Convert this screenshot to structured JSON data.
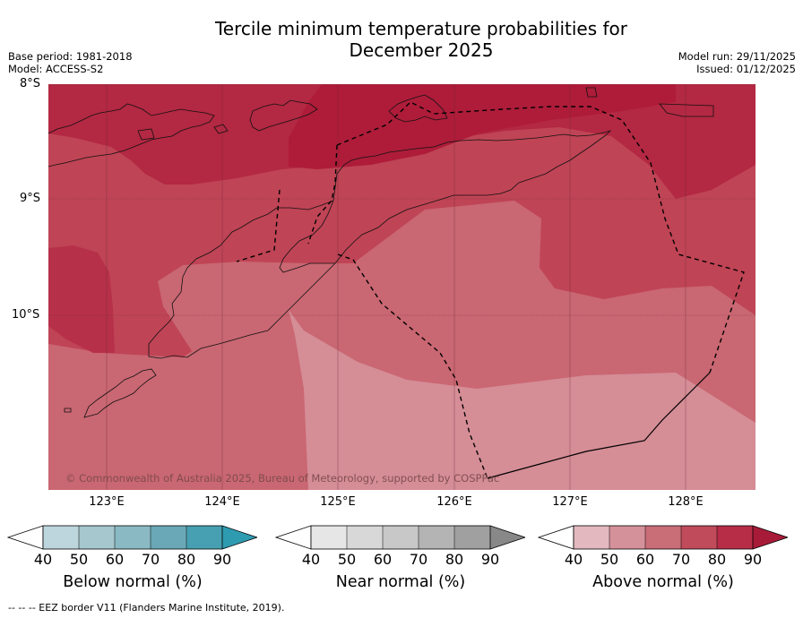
{
  "title": {
    "line1": "Tercile minimum temperature probabilities for",
    "line2": "December 2025"
  },
  "meta": {
    "base_period": "Base period: 1981-2018",
    "model": "Model: ACCESS-S2",
    "model_run": "Model run: 29/11/2025",
    "issued": "Issued: 01/12/2025"
  },
  "map": {
    "lat_labels": [
      "8°S",
      "9°S",
      "10°S"
    ],
    "lon_labels": [
      "123°E",
      "124°E",
      "125°E",
      "126°E",
      "127°E",
      "128°E"
    ],
    "credit": "© Commonwealth of Australia 2025, Bureau of Meteorology, supported by COSPPac",
    "probability_classes": [
      {
        "range": "50-60",
        "color": "#d58d96"
      },
      {
        "range": "60-70",
        "color": "#c96772"
      },
      {
        "range": "70-80",
        "color": "#bf4455"
      },
      {
        "range": "80-90",
        "color": "#b32842"
      }
    ]
  },
  "colorbars": [
    {
      "title": "Below normal (%)",
      "ticks": [
        "40",
        "50",
        "60",
        "70",
        "80",
        "90"
      ],
      "colors": [
        "#bdd5dc",
        "#a6c7ce",
        "#8ab9c3",
        "#6aa8b7",
        "#47a0b1"
      ],
      "extend_color": "#2f9bb0"
    },
    {
      "title": "Near normal (%)",
      "ticks": [
        "40",
        "50",
        "60",
        "70",
        "80",
        "90"
      ],
      "colors": [
        "#e6e6e6",
        "#d8d8d8",
        "#c8c8c8",
        "#b4b4b4",
        "#a0a0a0"
      ],
      "extend_color": "#888888"
    },
    {
      "title": "Above normal (%)",
      "ticks": [
        "40",
        "50",
        "60",
        "70",
        "80",
        "90"
      ],
      "colors": [
        "#e3b8bf",
        "#d5919a",
        "#c96d77",
        "#bf4b5b",
        "#b72c46"
      ],
      "extend_color": "#a81b38"
    }
  ],
  "footnote": "--  --  -- EEZ border V11 (Flanders Marine Institute, 2019)."
}
